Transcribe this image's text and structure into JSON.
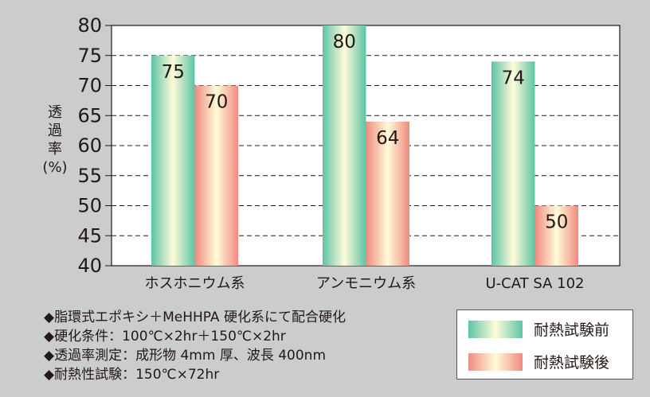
{
  "chart_data": {
    "type": "bar",
    "ylabel": "透過率\n(%)",
    "ylabel_lines": [
      "透",
      "過",
      "率",
      "(%)"
    ],
    "ylim": [
      40,
      80
    ],
    "yticks": [
      40,
      45,
      50,
      55,
      60,
      65,
      70,
      75,
      80
    ],
    "grid": "horizontal dashed",
    "categories": [
      "ホスホニウム系",
      "アンモニウム系",
      "U-CAT SA 102"
    ],
    "series": [
      {
        "name": "耐熱試験前",
        "values": [
          75,
          80,
          74
        ],
        "color": "#5cc4a6"
      },
      {
        "name": "耐熱試験後",
        "values": [
          70,
          64,
          50
        ],
        "color": "#f08a80"
      }
    ],
    "legend_position": "bottom-right"
  },
  "notes": [
    "◆脂環式エポキシ＋MeHHPA 硬化系にて配合硬化",
    "◆硬化条件：100℃×2hr＋150℃×2hr",
    "◆透過率測定：成形物 4mm 厚、波長 400nm",
    "◆耐熱性試験：150℃×72hr"
  ]
}
